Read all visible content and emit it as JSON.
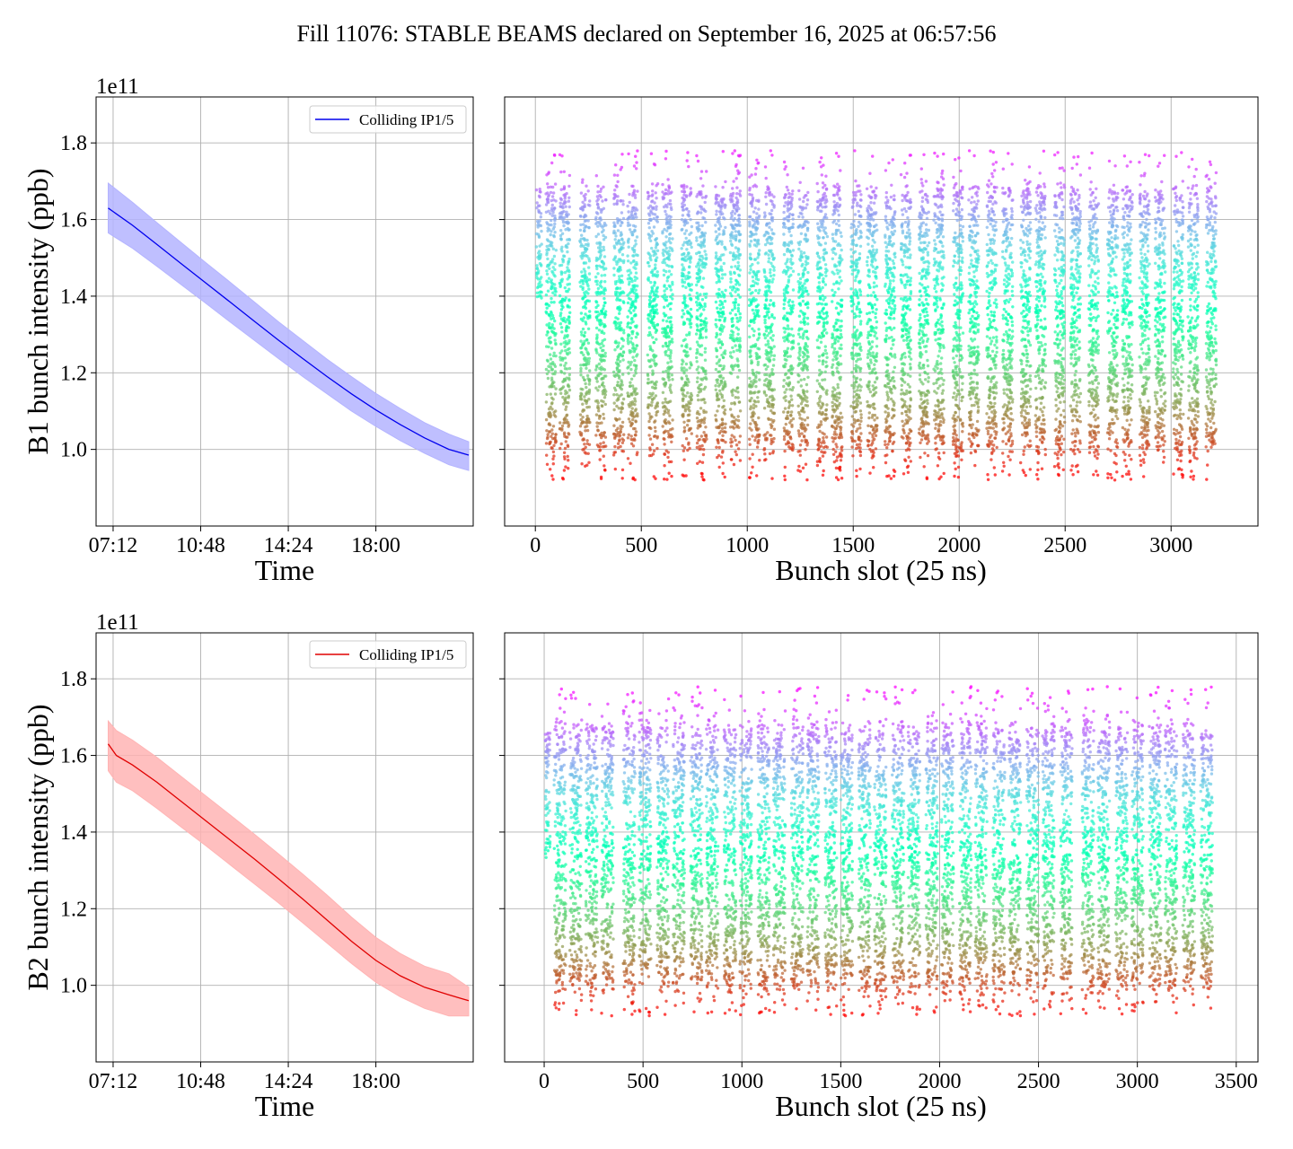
{
  "figure_title": "Fill 11076: STABLE BEAMS declared on September 16, 2025 at 06:57:56",
  "colors": {
    "b1_line": "#0000ee",
    "b1_band": "#b4b4ff",
    "b2_line": "#e00000",
    "b2_band": "#ffb4b4",
    "grid": "#b0b0b0"
  },
  "chart_data": [
    {
      "type": "line",
      "panel": "b1-time",
      "title": "",
      "xlabel": "Time",
      "ylabel": "B1 bunch intensity (ppb)",
      "y_offset_label": "1e11",
      "xlim": [
        "06:30",
        "22:00"
      ],
      "ylim": [
        0.8,
        1.92
      ],
      "x_ticks": [
        "07:12",
        "10:48",
        "14:24",
        "18:00"
      ],
      "y_ticks": [
        "1.0",
        "1.2",
        "1.4",
        "1.6",
        "1.8"
      ],
      "grid": true,
      "legend": {
        "placement": "top-right",
        "entries": [
          "Colliding IP1/5"
        ]
      },
      "series": [
        {
          "name": "Colliding IP1/5",
          "x": [
            "07:00",
            "08:00",
            "09:00",
            "10:00",
            "11:00",
            "12:00",
            "13:00",
            "14:00",
            "15:00",
            "16:00",
            "17:00",
            "18:00",
            "19:00",
            "20:00",
            "21:00",
            "21:49"
          ],
          "y": [
            1.63,
            1.585,
            1.535,
            1.485,
            1.435,
            1.385,
            1.335,
            1.285,
            1.237,
            1.19,
            1.145,
            1.103,
            1.065,
            1.03,
            1.0,
            0.985
          ],
          "band_low": [
            1.565,
            1.525,
            1.478,
            1.43,
            1.382,
            1.333,
            1.285,
            1.237,
            1.19,
            1.145,
            1.1,
            1.06,
            1.023,
            0.99,
            0.96,
            0.945
          ],
          "band_high": [
            1.695,
            1.645,
            1.592,
            1.54,
            1.488,
            1.437,
            1.385,
            1.333,
            1.284,
            1.235,
            1.19,
            1.146,
            1.107,
            1.07,
            1.04,
            1.02
          ]
        }
      ]
    },
    {
      "type": "scatter",
      "panel": "b1-slot",
      "title": "",
      "xlabel": "Bunch slot (25 ns)",
      "ylabel": "",
      "xlim": [
        -145,
        3410
      ],
      "ylim": [
        0.8,
        1.92
      ],
      "x_ticks": [
        "0",
        "500",
        "1000",
        "1500",
        "2000",
        "2500",
        "3000"
      ],
      "y_ticks": [
        "1.0",
        "1.2",
        "1.4",
        "1.6",
        "1.8"
      ],
      "grid": true,
      "colormap": "rainbow",
      "color_meaning": "colour runs from purple (high intensity) to red (low intensity)",
      "intensity_range": [
        0.93,
        1.8
      ],
      "first_trains": {
        "slots": [
          5,
          30
        ],
        "intensity_range": [
          1.38,
          1.68
        ]
      },
      "train_starts": [
        50,
        115,
        210,
        285,
        370,
        435,
        530,
        600,
        690,
        760,
        850,
        920,
        1010,
        1080,
        1170,
        1240,
        1330,
        1400,
        1490,
        1565,
        1650,
        1725,
        1810,
        1880,
        1970,
        2045,
        2130,
        2205,
        2290,
        2360,
        2450,
        2525,
        2610,
        2700,
        2770,
        2850,
        2925,
        3010,
        3080,
        3165
      ],
      "train_length": 48,
      "last_slot": 3240
    },
    {
      "type": "line",
      "panel": "b2-time",
      "title": "",
      "xlabel": "Time",
      "ylabel": "B2 bunch intensity (ppb)",
      "y_offset_label": "1e11",
      "xlim": [
        "06:30",
        "22:00"
      ],
      "ylim": [
        0.8,
        1.92
      ],
      "x_ticks": [
        "07:12",
        "10:48",
        "14:24",
        "18:00"
      ],
      "y_ticks": [
        "1.0",
        "1.2",
        "1.4",
        "1.6",
        "1.8"
      ],
      "grid": true,
      "legend": {
        "placement": "top-right",
        "entries": [
          "Colliding IP1/5"
        ]
      },
      "series": [
        {
          "name": "Colliding IP1/5",
          "x": [
            "07:00",
            "07:20",
            "08:00",
            "09:00",
            "10:00",
            "11:00",
            "12:00",
            "13:00",
            "14:00",
            "15:00",
            "16:00",
            "17:00",
            "18:00",
            "19:00",
            "20:00",
            "21:00",
            "21:49"
          ],
          "y": [
            1.63,
            1.6,
            1.575,
            1.53,
            1.48,
            1.43,
            1.38,
            1.33,
            1.278,
            1.225,
            1.17,
            1.115,
            1.065,
            1.025,
            0.995,
            0.975,
            0.96
          ],
          "band_low": [
            1.56,
            1.53,
            1.508,
            1.462,
            1.413,
            1.365,
            1.315,
            1.265,
            1.215,
            1.163,
            1.11,
            1.057,
            1.008,
            0.97,
            0.94,
            0.92,
            0.92
          ],
          "band_high": [
            1.69,
            1.665,
            1.64,
            1.595,
            1.545,
            1.495,
            1.445,
            1.395,
            1.343,
            1.29,
            1.235,
            1.178,
            1.125,
            1.083,
            1.05,
            1.03,
            0.995
          ]
        }
      ]
    },
    {
      "type": "scatter",
      "panel": "b2-slot",
      "title": "",
      "xlabel": "Bunch slot (25 ns)",
      "ylabel": "",
      "xlim": [
        -200,
        3610
      ],
      "ylim": [
        0.8,
        1.92
      ],
      "x_ticks": [
        "0",
        "500",
        "1000",
        "1500",
        "2000",
        "2500",
        "3000",
        "3500"
      ],
      "y_ticks": [
        "1.0",
        "1.2",
        "1.4",
        "1.6",
        "1.8"
      ],
      "grid": true,
      "colormap": "rainbow",
      "color_meaning": "colour runs from purple (high intensity) to red (low intensity)",
      "intensity_range": [
        0.92,
        1.78
      ],
      "first_trains": {
        "slots": [
          5,
          30
        ],
        "intensity_range": [
          1.33,
          1.66
        ]
      },
      "train_starts": [
        50,
        130,
        210,
        290,
        400,
        480,
        570,
        650,
        740,
        820,
        910,
        990,
        1080,
        1160,
        1250,
        1330,
        1420,
        1500,
        1590,
        1670,
        1760,
        1840,
        1930,
        2010,
        2100,
        2180,
        2270,
        2350,
        2440,
        2520,
        2610,
        2720,
        2800,
        2890,
        2970,
        3060,
        3140,
        3230,
        3320
      ],
      "train_length": 60,
      "last_slot": 3430
    }
  ]
}
